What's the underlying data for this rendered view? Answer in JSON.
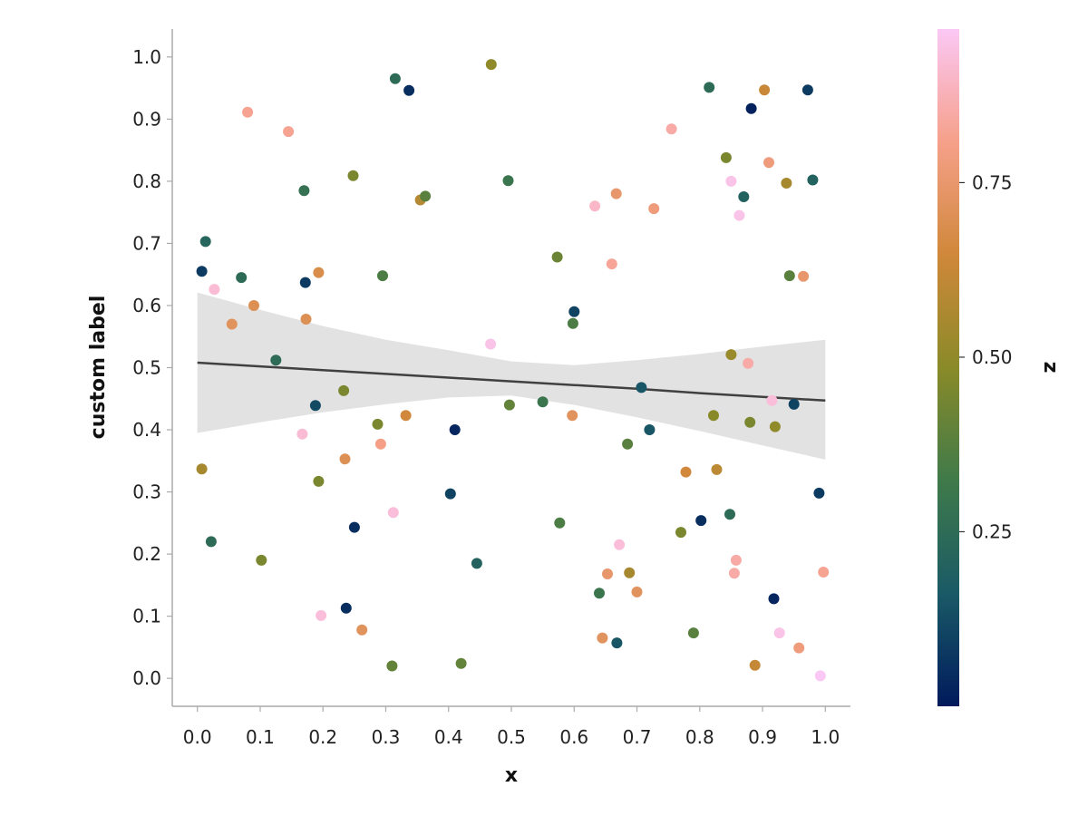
{
  "chart_data": {
    "type": "scatter",
    "title": "",
    "xlabel": "x",
    "ylabel": "custom label",
    "xlim": [
      -0.04,
      1.04
    ],
    "ylim": [
      -0.045,
      1.045
    ],
    "grid": false,
    "x_ticks": [
      "0.0",
      "0.1",
      "0.2",
      "0.3",
      "0.4",
      "0.5",
      "0.6",
      "0.7",
      "0.8",
      "0.9",
      "1.0"
    ],
    "y_ticks": [
      "0.0",
      "0.1",
      "0.2",
      "0.3",
      "0.4",
      "0.5",
      "0.6",
      "0.7",
      "0.8",
      "0.9",
      "1.0"
    ],
    "colorbar": {
      "label": "z",
      "range": [
        0.0,
        0.97
      ],
      "ticks": [
        "0.25",
        "0.50",
        "0.75"
      ],
      "colors": [
        "#001a5c",
        "#1a5a66",
        "#3f7a4a",
        "#8a8a28",
        "#d0883a",
        "#f6a08a",
        "#fbc8f5"
      ]
    },
    "regression": {
      "x": [
        0.0,
        0.1,
        0.2,
        0.3,
        0.4,
        0.5,
        0.6,
        0.7,
        0.8,
        0.9,
        1.0
      ],
      "y": [
        0.508,
        0.502,
        0.496,
        0.49,
        0.484,
        0.478,
        0.472,
        0.466,
        0.459,
        0.453,
        0.447
      ],
      "lower": [
        0.395,
        0.412,
        0.428,
        0.441,
        0.452,
        0.455,
        0.44,
        0.42,
        0.398,
        0.375,
        0.352
      ],
      "upper": [
        0.621,
        0.593,
        0.567,
        0.545,
        0.528,
        0.51,
        0.504,
        0.512,
        0.522,
        0.534,
        0.545
      ],
      "line_color": "#404040",
      "band_color": "#e2e2e2"
    },
    "points": [
      [
        0.007,
        0.655,
        0.08
      ],
      [
        0.013,
        0.703,
        0.22
      ],
      [
        0.027,
        0.626,
        0.92
      ],
      [
        0.07,
        0.645,
        0.25
      ],
      [
        0.08,
        0.911,
        0.82
      ],
      [
        0.145,
        0.88,
        0.82
      ],
      [
        0.17,
        0.785,
        0.28
      ],
      [
        0.172,
        0.637,
        0.08
      ],
      [
        0.188,
        0.439,
        0.12
      ],
      [
        0.193,
        0.653,
        0.68
      ],
      [
        0.055,
        0.57,
        0.72
      ],
      [
        0.09,
        0.6,
        0.7
      ],
      [
        0.125,
        0.512,
        0.25
      ],
      [
        0.173,
        0.578,
        0.7
      ],
      [
        0.007,
        0.337,
        0.55
      ],
      [
        0.022,
        0.22,
        0.25
      ],
      [
        0.102,
        0.19,
        0.45
      ],
      [
        0.167,
        0.393,
        0.92
      ],
      [
        0.193,
        0.317,
        0.45
      ],
      [
        0.197,
        0.101,
        0.93
      ],
      [
        0.233,
        0.463,
        0.45
      ],
      [
        0.235,
        0.353,
        0.7
      ],
      [
        0.25,
        0.243,
        0.05
      ],
      [
        0.237,
        0.113,
        0.05
      ],
      [
        0.248,
        0.809,
        0.45
      ],
      [
        0.262,
        0.078,
        0.72
      ],
      [
        0.287,
        0.409,
        0.45
      ],
      [
        0.292,
        0.377,
        0.8
      ],
      [
        0.295,
        0.648,
        0.35
      ],
      [
        0.315,
        0.965,
        0.25
      ],
      [
        0.312,
        0.267,
        0.93
      ],
      [
        0.31,
        0.02,
        0.4
      ],
      [
        0.337,
        0.946,
        0.05
      ],
      [
        0.332,
        0.423,
        0.65
      ],
      [
        0.355,
        0.77,
        0.58
      ],
      [
        0.363,
        0.776,
        0.38
      ],
      [
        0.403,
        0.297,
        0.1
      ],
      [
        0.41,
        0.4,
        0.03
      ],
      [
        0.42,
        0.024,
        0.4
      ],
      [
        0.445,
        0.185,
        0.2
      ],
      [
        0.468,
        0.988,
        0.5
      ],
      [
        0.467,
        0.538,
        0.95
      ],
      [
        0.495,
        0.801,
        0.3
      ],
      [
        0.497,
        0.44,
        0.4
      ],
      [
        0.55,
        0.445,
        0.3
      ],
      [
        0.573,
        0.678,
        0.42
      ],
      [
        0.577,
        0.25,
        0.35
      ],
      [
        0.597,
        0.423,
        0.72
      ],
      [
        0.6,
        0.59,
        0.1
      ],
      [
        0.598,
        0.571,
        0.35
      ],
      [
        0.633,
        0.76,
        0.9
      ],
      [
        0.64,
        0.137,
        0.3
      ],
      [
        0.645,
        0.065,
        0.72
      ],
      [
        0.653,
        0.168,
        0.75
      ],
      [
        0.66,
        0.667,
        0.83
      ],
      [
        0.667,
        0.78,
        0.75
      ],
      [
        0.668,
        0.057,
        0.15
      ],
      [
        0.672,
        0.215,
        0.93
      ],
      [
        0.685,
        0.377,
        0.38
      ],
      [
        0.688,
        0.17,
        0.55
      ],
      [
        0.7,
        0.139,
        0.72
      ],
      [
        0.707,
        0.468,
        0.15
      ],
      [
        0.72,
        0.4,
        0.15
      ],
      [
        0.727,
        0.756,
        0.78
      ],
      [
        0.755,
        0.884,
        0.85
      ],
      [
        0.77,
        0.235,
        0.45
      ],
      [
        0.778,
        0.332,
        0.65
      ],
      [
        0.79,
        0.073,
        0.38
      ],
      [
        0.802,
        0.254,
        0.05
      ],
      [
        0.815,
        0.951,
        0.25
      ],
      [
        0.822,
        0.423,
        0.48
      ],
      [
        0.827,
        0.336,
        0.6
      ],
      [
        0.842,
        0.838,
        0.45
      ],
      [
        0.848,
        0.264,
        0.25
      ],
      [
        0.85,
        0.521,
        0.52
      ],
      [
        0.85,
        0.8,
        0.95
      ],
      [
        0.855,
        0.169,
        0.85
      ],
      [
        0.858,
        0.19,
        0.85
      ],
      [
        0.863,
        0.745,
        0.95
      ],
      [
        0.87,
        0.775,
        0.2
      ],
      [
        0.877,
        0.507,
        0.85
      ],
      [
        0.88,
        0.412,
        0.45
      ],
      [
        0.882,
        0.917,
        0.02
      ],
      [
        0.888,
        0.021,
        0.62
      ],
      [
        0.903,
        0.947,
        0.63
      ],
      [
        0.91,
        0.83,
        0.78
      ],
      [
        0.915,
        0.447,
        0.93
      ],
      [
        0.918,
        0.128,
        0.03
      ],
      [
        0.92,
        0.405,
        0.5
      ],
      [
        0.927,
        0.073,
        0.95
      ],
      [
        0.938,
        0.797,
        0.55
      ],
      [
        0.943,
        0.648,
        0.38
      ],
      [
        0.95,
        0.441,
        0.1
      ],
      [
        0.958,
        0.049,
        0.78
      ],
      [
        0.965,
        0.647,
        0.75
      ],
      [
        0.972,
        0.947,
        0.08
      ],
      [
        0.98,
        0.802,
        0.2
      ],
      [
        0.99,
        0.298,
        0.08
      ],
      [
        0.992,
        0.004,
        0.97
      ],
      [
        0.997,
        0.171,
        0.82
      ]
    ]
  }
}
